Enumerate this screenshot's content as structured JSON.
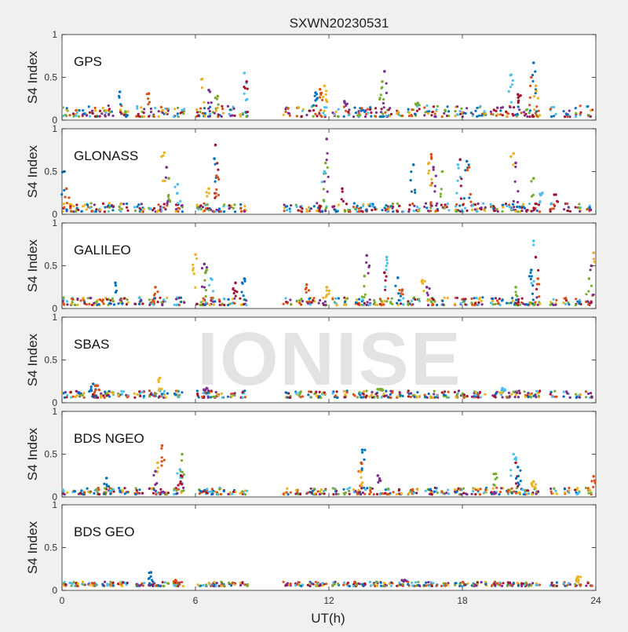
{
  "chart_data": {
    "type": "scatter",
    "title": "SXWN20230531",
    "xlabel": "UT(h)",
    "ylabel": "S4 Index",
    "xlim": [
      0,
      24
    ],
    "ylim": [
      0,
      1
    ],
    "x_ticks": [
      "0",
      "6",
      "12",
      "18",
      "24"
    ],
    "y_ticks": [
      "0",
      "0.5",
      "1"
    ],
    "watermark": "IONISE",
    "grid": false,
    "colors": [
      "#0072bd",
      "#d95319",
      "#edb120",
      "#7e2f8e",
      "#77ac30",
      "#4dbeee",
      "#a2142f"
    ],
    "visibility_segments": [
      [
        0,
        0.25
      ],
      [
        0.35,
        1.05
      ],
      [
        1.1,
        2.35
      ],
      [
        2.5,
        3.0
      ],
      [
        3.25,
        3.7
      ],
      [
        3.9,
        4.8
      ],
      [
        5.0,
        5.5
      ],
      [
        6.05,
        7.3
      ],
      [
        7.45,
        7.8
      ],
      [
        8.0,
        8.35
      ],
      [
        9.95,
        10.3
      ],
      [
        10.5,
        10.85
      ],
      [
        11.0,
        11.9
      ],
      [
        12.15,
        12.45
      ],
      [
        12.65,
        12.95
      ],
      [
        13.1,
        14.2
      ],
      [
        14.3,
        14.9
      ],
      [
        15.05,
        15.35
      ],
      [
        15.55,
        16.1
      ],
      [
        16.25,
        16.9
      ],
      [
        17.05,
        17.4
      ],
      [
        17.65,
        18.25
      ],
      [
        18.4,
        19.1
      ],
      [
        19.25,
        19.85
      ],
      [
        19.95,
        20.6
      ],
      [
        20.65,
        21.5
      ],
      [
        21.95,
        22.25
      ],
      [
        22.55,
        22.85
      ],
      [
        23.05,
        23.35
      ],
      [
        23.55,
        23.85
      ]
    ],
    "panels": [
      {
        "name": "GPS",
        "baseline": [
          0.04,
          0.17
        ],
        "spikes": [
          [
            2.6,
            0.33
          ],
          [
            3.9,
            0.31
          ],
          [
            6.3,
            0.48
          ],
          [
            6.6,
            0.35
          ],
          [
            7.0,
            0.28
          ],
          [
            8.2,
            0.55
          ],
          [
            8.3,
            0.45
          ],
          [
            11.4,
            0.32
          ],
          [
            11.6,
            0.36
          ],
          [
            11.8,
            0.4
          ],
          [
            14.5,
            0.57
          ],
          [
            14.4,
            0.45
          ],
          [
            20.2,
            0.53
          ],
          [
            20.5,
            0.3
          ],
          [
            21.2,
            0.67
          ],
          [
            21.1,
            0.5
          ],
          [
            21.3,
            0.4
          ],
          [
            12.7,
            0.22
          ],
          [
            16.0,
            0.2
          ]
        ]
      },
      {
        "name": "GLONASS",
        "baseline": [
          0.03,
          0.13
        ],
        "spikes": [
          [
            0.1,
            0.5
          ],
          [
            0.2,
            0.3
          ],
          [
            4.6,
            0.72
          ],
          [
            4.7,
            0.55
          ],
          [
            4.8,
            0.42
          ],
          [
            5.2,
            0.35
          ],
          [
            6.9,
            0.81
          ],
          [
            6.85,
            0.65
          ],
          [
            6.95,
            0.45
          ],
          [
            6.6,
            0.3
          ],
          [
            11.9,
            0.88
          ],
          [
            11.85,
            0.6
          ],
          [
            11.8,
            0.5
          ],
          [
            12.6,
            0.3
          ],
          [
            15.8,
            0.58
          ],
          [
            16.6,
            0.7
          ],
          [
            16.5,
            0.6
          ],
          [
            16.7,
            0.55
          ],
          [
            17.1,
            0.5
          ],
          [
            17.8,
            0.58
          ],
          [
            17.9,
            0.64
          ],
          [
            18.2,
            0.62
          ],
          [
            18.3,
            0.55
          ],
          [
            20.3,
            0.71
          ],
          [
            20.4,
            0.6
          ],
          [
            21.2,
            0.42
          ],
          [
            21.6,
            0.25
          ],
          [
            22.2,
            0.23
          ]
        ]
      },
      {
        "name": "GALILEO",
        "baseline": [
          0.04,
          0.13
        ],
        "spikes": [
          [
            2.4,
            0.3
          ],
          [
            4.2,
            0.25
          ],
          [
            6.0,
            0.63
          ],
          [
            6.4,
            0.52
          ],
          [
            6.5,
            0.45
          ],
          [
            6.7,
            0.35
          ],
          [
            7.8,
            0.3
          ],
          [
            8.2,
            0.35
          ],
          [
            11.0,
            0.28
          ],
          [
            11.9,
            0.25
          ],
          [
            13.7,
            0.62
          ],
          [
            13.6,
            0.38
          ],
          [
            14.6,
            0.6
          ],
          [
            14.5,
            0.42
          ],
          [
            15.1,
            0.36
          ],
          [
            15.3,
            0.22
          ],
          [
            16.2,
            0.33
          ],
          [
            16.4,
            0.25
          ],
          [
            20.4,
            0.25
          ],
          [
            21.2,
            0.79
          ],
          [
            21.3,
            0.6
          ],
          [
            21.1,
            0.45
          ],
          [
            21.4,
            0.35
          ],
          [
            23.9,
            0.65
          ],
          [
            23.8,
            0.5
          ],
          [
            23.7,
            0.35
          ]
        ]
      },
      {
        "name": "SBAS",
        "baseline": [
          0.06,
          0.14
        ],
        "spikes": [
          [
            1.4,
            0.22
          ],
          [
            1.6,
            0.2
          ],
          [
            4.4,
            0.29
          ],
          [
            6.5,
            0.17
          ],
          [
            14.3,
            0.16
          ],
          [
            19.8,
            0.17
          ]
        ]
      },
      {
        "name": "BDS NGEO",
        "baseline": [
          0.03,
          0.11
        ],
        "spikes": [
          [
            2.0,
            0.22
          ],
          [
            4.5,
            0.6
          ],
          [
            4.3,
            0.4
          ],
          [
            4.2,
            0.3
          ],
          [
            5.4,
            0.5
          ],
          [
            5.3,
            0.32
          ],
          [
            5.35,
            0.25
          ],
          [
            13.5,
            0.55
          ],
          [
            13.45,
            0.4
          ],
          [
            13.4,
            0.3
          ],
          [
            14.2,
            0.25
          ],
          [
            19.5,
            0.27
          ],
          [
            20.3,
            0.5
          ],
          [
            20.4,
            0.4
          ],
          [
            20.5,
            0.35
          ],
          [
            23.9,
            0.24
          ],
          [
            21.2,
            0.18
          ]
        ]
      },
      {
        "name": "BDS GEO",
        "baseline": [
          0.05,
          0.1
        ],
        "spikes": [
          [
            4.0,
            0.21
          ],
          [
            5.1,
            0.12
          ],
          [
            23.2,
            0.16
          ],
          [
            15.4,
            0.12
          ]
        ]
      }
    ]
  }
}
